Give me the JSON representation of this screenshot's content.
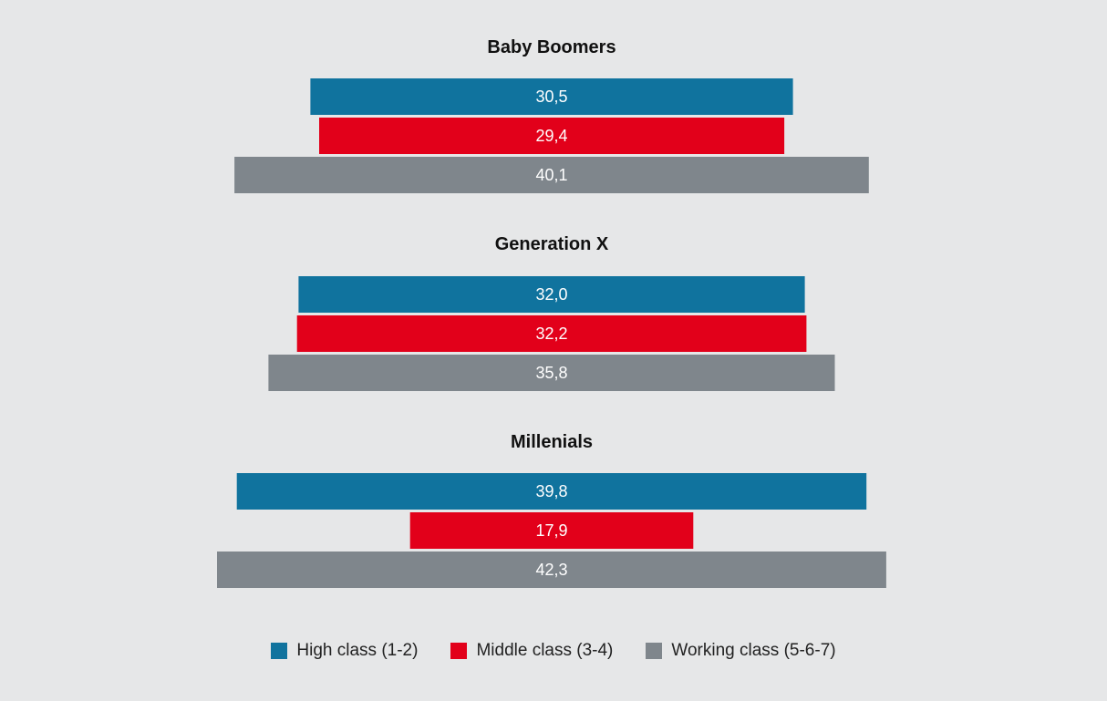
{
  "chart_data": {
    "type": "bar",
    "orientation": "horizontal-centered",
    "groups": [
      {
        "name": "Baby Boomers",
        "values": [
          30.5,
          29.4,
          40.1
        ],
        "labels": [
          "30,5",
          "29,4",
          "40,1"
        ]
      },
      {
        "name": "Generation X",
        "values": [
          32.0,
          32.2,
          35.8
        ],
        "labels": [
          "32,0",
          "32,2",
          "35,8"
        ]
      },
      {
        "name": "Millenials",
        "values": [
          39.8,
          17.9,
          42.3
        ],
        "labels": [
          "39,8",
          "17,9",
          "42,3"
        ]
      }
    ],
    "series": [
      {
        "name": "High class (1-2)",
        "color": "#10739e"
      },
      {
        "name": "Middle class (3-4)",
        "color": "#e2001a"
      },
      {
        "name": "Working class (5-6-7)",
        "color": "#7f868c"
      }
    ],
    "legend_position": "bottom-center",
    "grid": false
  }
}
